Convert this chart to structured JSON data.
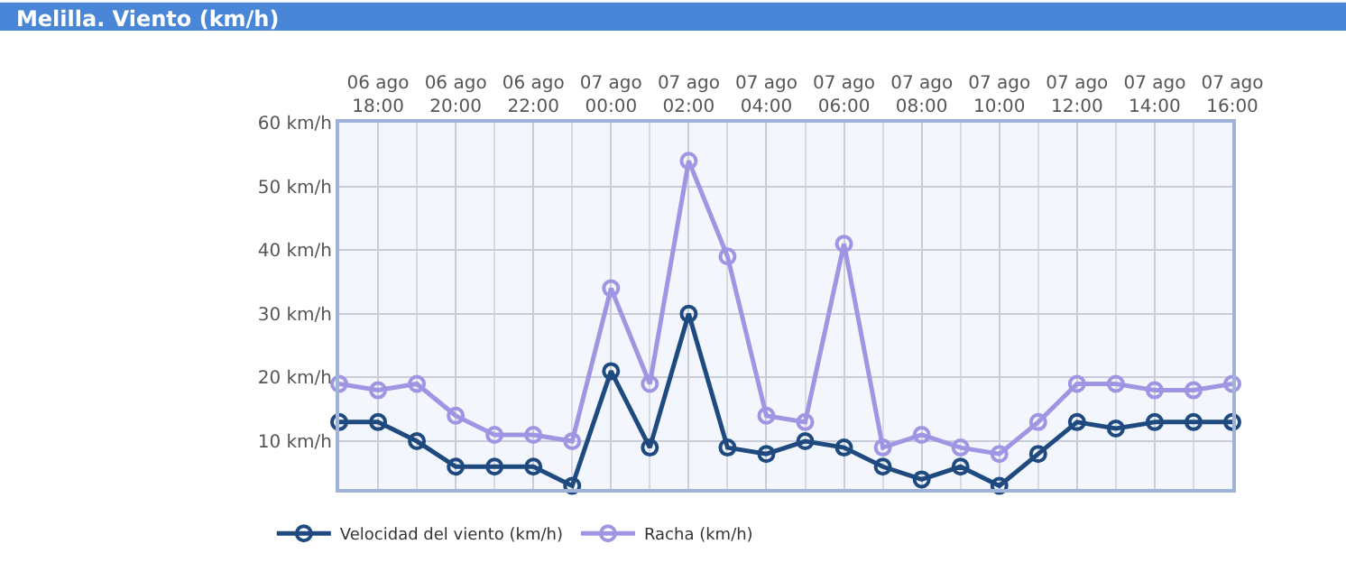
{
  "chart_data": {
    "type": "line",
    "title": "Melilla. Viento (km/h)",
    "categories": [
      null,
      "06 ago\n18:00",
      null,
      "06 ago\n20:00",
      null,
      "06 ago\n22:00",
      null,
      "07 ago\n00:00",
      null,
      "07 ago\n02:00",
      null,
      "07 ago\n04:00",
      null,
      "07 ago\n06:00",
      null,
      "07 ago\n08:00",
      null,
      "07 ago\n10:00",
      null,
      "07 ago\n12:00",
      null,
      "07 ago\n14:00",
      null,
      "07 ago\n16:00"
    ],
    "series": [
      {
        "name": "Velocidad del viento (km/h)",
        "color": "#1f4a80",
        "values": [
          13,
          13,
          10,
          6,
          6,
          6,
          3,
          21,
          9,
          30,
          9,
          8,
          10,
          9,
          6,
          4,
          6,
          3,
          8,
          13,
          12,
          13,
          13,
          13
        ]
      },
      {
        "name": "Racha (km/h)",
        "color": "#9e95e3",
        "values": [
          19,
          18,
          19,
          14,
          11,
          11,
          10,
          34,
          19,
          54,
          39,
          14,
          13,
          41,
          9,
          11,
          9,
          8,
          13,
          19,
          19,
          18,
          18,
          19
        ]
      }
    ],
    "ylim": [
      2.5,
      60
    ],
    "yticks": [
      {
        "value": 10,
        "label": "10 km/h"
      },
      {
        "value": 20,
        "label": "20 km/h"
      },
      {
        "value": 30,
        "label": "30 km/h"
      },
      {
        "value": 40,
        "label": "40 km/h"
      },
      {
        "value": 50,
        "label": "50 km/h"
      },
      {
        "value": 60,
        "label": "60 km/h"
      }
    ],
    "grid": true,
    "legend": "bottom left",
    "marker": "circle",
    "line_style": "solid"
  }
}
